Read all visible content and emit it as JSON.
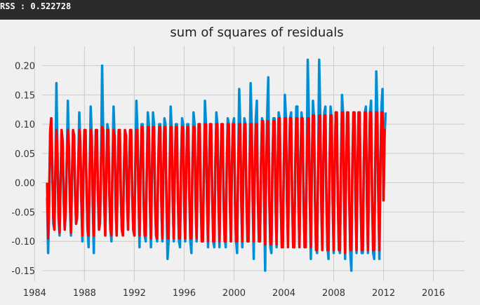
{
  "console": {
    "rss_label": "RSS",
    "rss_separator": " : ",
    "rss_value": "0.522728"
  },
  "colors": {
    "console_bg": "#2b2b2b",
    "plot_bg": "#f0f0f0",
    "grid": "#cbcbcb",
    "series_original": "#008fd5",
    "series_fitted": "#ff0000"
  },
  "chart_data": {
    "type": "line",
    "title": "sum of squares of residuals",
    "xlabel": "",
    "ylabel": "",
    "xlim": [
      1984.6,
      2018.5
    ],
    "ylim": [
      -0.168,
      0.233
    ],
    "xticks": [
      "1984",
      "1988",
      "1992",
      "1996",
      "2000",
      "2004",
      "2008",
      "2012",
      "2016"
    ],
    "yticks": [
      "0.20",
      "0.15",
      "0.10",
      "0.05",
      "0.00",
      "-0.05",
      "-0.10",
      "-0.15"
    ],
    "grid": true,
    "legend": "none",
    "x_start": 1985.0,
    "x_step_years": 0.08333,
    "series": [
      {
        "color": "#008fd5",
        "values": [
          -0.025,
          -0.12,
          -0.04,
          0.08,
          0.11,
          0.03,
          -0.07,
          -0.08,
          0.02,
          0.17,
          0.05,
          -0.06,
          -0.09,
          0.0,
          0.09,
          0.07,
          -0.03,
          -0.08,
          -0.05,
          0.04,
          0.14,
          0.06,
          -0.04,
          -0.09,
          0.01,
          0.09,
          0.08,
          -0.02,
          -0.07,
          -0.06,
          0.03,
          0.12,
          0.07,
          -0.03,
          -0.1,
          0.02,
          0.09,
          0.09,
          -0.01,
          -0.08,
          -0.11,
          0.02,
          0.13,
          0.08,
          -0.04,
          -0.12,
          0.01,
          0.09,
          0.09,
          -0.02,
          -0.08,
          -0.07,
          0.04,
          0.2,
          0.09,
          -0.03,
          -0.09,
          0.01,
          0.1,
          0.09,
          -0.02,
          -0.08,
          -0.1,
          0.03,
          0.13,
          0.08,
          -0.04,
          -0.09,
          0.01,
          0.09,
          0.09,
          -0.02,
          -0.08,
          -0.09,
          0.02,
          0.09,
          0.08,
          -0.03,
          -0.08,
          0.02,
          0.09,
          0.09,
          -0.02,
          -0.08,
          -0.09,
          0.03,
          0.14,
          0.09,
          -0.02,
          -0.11,
          0.02,
          0.1,
          0.1,
          -0.03,
          -0.09,
          -0.1,
          0.02,
          0.12,
          0.1,
          -0.03,
          -0.11,
          0.02,
          0.12,
          0.1,
          -0.04,
          -0.09,
          -0.1,
          0.03,
          0.1,
          0.1,
          -0.03,
          -0.1,
          0.02,
          0.11,
          0.1,
          -0.04,
          -0.13,
          -0.1,
          0.02,
          0.13,
          0.09,
          -0.03,
          -0.1,
          0.02,
          0.1,
          0.1,
          -0.03,
          -0.1,
          -0.11,
          0.03,
          0.11,
          0.1,
          -0.04,
          -0.1,
          0.02,
          0.1,
          0.1,
          -0.02,
          -0.1,
          -0.12,
          0.03,
          0.12,
          0.1,
          -0.03,
          -0.1,
          0.02,
          0.1,
          0.1,
          -0.03,
          -0.1,
          -0.1,
          0.02,
          0.14,
          0.1,
          -0.03,
          -0.11,
          0.02,
          0.1,
          0.1,
          -0.02,
          -0.1,
          -0.11,
          0.03,
          0.12,
          0.1,
          -0.03,
          -0.11,
          0.02,
          0.1,
          0.1,
          -0.03,
          -0.09,
          -0.11,
          0.03,
          0.11,
          0.1,
          -0.03,
          -0.1,
          0.03,
          0.1,
          0.11,
          -0.03,
          -0.1,
          -0.12,
          0.03,
          0.16,
          0.1,
          -0.03,
          -0.11,
          0.02,
          0.11,
          0.1,
          -0.03,
          -0.1,
          -0.1,
          0.03,
          0.17,
          0.1,
          -0.03,
          -0.13,
          0.02,
          0.11,
          0.14,
          -0.03,
          -0.1,
          -0.1,
          0.03,
          0.11,
          0.1,
          -0.03,
          -0.15,
          0.03,
          0.12,
          0.18,
          -0.03,
          -0.11,
          -0.12,
          0.03,
          0.11,
          0.11,
          -0.03,
          -0.11,
          0.02,
          0.12,
          0.11,
          -0.03,
          -0.1,
          -0.1,
          0.03,
          0.15,
          0.11,
          -0.03,
          -0.1,
          0.03,
          0.11,
          0.12,
          -0.03,
          -0.11,
          -0.11,
          0.03,
          0.13,
          0.13,
          -0.03,
          -0.11,
          0.03,
          0.12,
          0.1,
          -0.03,
          -0.11,
          -0.11,
          0.03,
          0.21,
          0.12,
          -0.03,
          -0.13,
          0.03,
          0.14,
          0.11,
          -0.03,
          -0.11,
          -0.12,
          0.03,
          0.21,
          0.12,
          -0.03,
          -0.11,
          0.03,
          0.12,
          0.13,
          -0.03,
          -0.11,
          -0.13,
          0.03,
          0.13,
          0.11,
          -0.03,
          -0.12,
          0.03,
          0.12,
          0.11,
          -0.03,
          -0.11,
          -0.12,
          0.03,
          0.15,
          0.12,
          -0.03,
          -0.13,
          0.03,
          0.12,
          0.11,
          -0.03,
          -0.12,
          -0.15,
          0.03,
          0.12,
          0.12,
          -0.03,
          -0.12,
          0.03,
          0.12,
          0.12,
          -0.03,
          -0.12,
          -0.12,
          0.03,
          0.12,
          0.13,
          -0.03,
          -0.12,
          0.03,
          0.12,
          0.14,
          -0.03,
          -0.12,
          -0.13,
          0.03,
          0.19,
          0.12,
          -0.03,
          -0.13,
          0.03,
          0.13,
          0.16,
          -0.03,
          0.08,
          0.12
        ]
      },
      {
        "color": "#ff0000",
        "values": [
          0.0,
          -0.095,
          -0.02,
          0.09,
          0.11,
          0.03,
          -0.06,
          -0.08,
          0.02,
          0.09,
          0.05,
          -0.05,
          -0.085,
          0.0,
          0.09,
          0.07,
          -0.02,
          -0.08,
          -0.04,
          0.04,
          0.09,
          0.06,
          -0.03,
          -0.085,
          0.01,
          0.09,
          0.08,
          -0.02,
          -0.07,
          -0.05,
          0.03,
          0.09,
          0.07,
          -0.03,
          -0.09,
          0.02,
          0.09,
          0.09,
          -0.01,
          -0.08,
          -0.09,
          0.02,
          0.09,
          0.08,
          -0.03,
          -0.09,
          0.01,
          0.09,
          0.09,
          -0.02,
          -0.08,
          -0.06,
          0.04,
          0.095,
          0.09,
          -0.03,
          -0.09,
          0.01,
          0.09,
          0.09,
          -0.02,
          -0.08,
          -0.09,
          0.03,
          0.09,
          0.08,
          -0.03,
          -0.09,
          0.01,
          0.09,
          0.09,
          -0.02,
          -0.08,
          -0.09,
          0.02,
          0.09,
          0.08,
          -0.03,
          -0.08,
          0.02,
          0.09,
          0.09,
          -0.02,
          -0.08,
          -0.09,
          0.03,
          0.09,
          0.09,
          -0.02,
          -0.09,
          0.02,
          0.095,
          0.095,
          -0.03,
          -0.09,
          -0.09,
          0.02,
          0.095,
          0.095,
          -0.03,
          -0.095,
          0.02,
          0.095,
          0.095,
          -0.03,
          -0.09,
          -0.095,
          0.03,
          0.095,
          0.095,
          -0.03,
          -0.095,
          0.02,
          0.095,
          0.095,
          -0.03,
          -0.095,
          -0.095,
          0.02,
          0.095,
          0.095,
          -0.03,
          -0.095,
          0.02,
          0.095,
          0.095,
          -0.03,
          -0.095,
          -0.095,
          0.03,
          0.095,
          0.095,
          -0.03,
          -0.095,
          0.02,
          0.095,
          0.095,
          -0.02,
          -0.095,
          -0.095,
          0.03,
          0.095,
          0.095,
          -0.03,
          -0.095,
          0.02,
          0.1,
          0.1,
          -0.03,
          -0.1,
          -0.1,
          0.02,
          0.1,
          0.1,
          -0.03,
          -0.1,
          0.02,
          0.1,
          0.1,
          -0.02,
          -0.1,
          -0.1,
          0.03,
          0.1,
          0.1,
          -0.03,
          -0.1,
          0.02,
          0.1,
          0.1,
          -0.03,
          -0.1,
          -0.1,
          0.03,
          0.1,
          0.1,
          -0.03,
          -0.1,
          0.03,
          0.1,
          0.1,
          -0.03,
          -0.1,
          -0.1,
          0.03,
          0.1,
          0.1,
          -0.03,
          -0.1,
          0.02,
          0.1,
          0.1,
          -0.03,
          -0.1,
          -0.1,
          0.03,
          0.1,
          0.1,
          -0.03,
          -0.1,
          0.02,
          0.1,
          0.1,
          -0.03,
          -0.1,
          -0.1,
          0.03,
          0.105,
          0.105,
          -0.03,
          -0.105,
          0.03,
          0.105,
          0.105,
          -0.03,
          -0.105,
          -0.105,
          0.03,
          0.105,
          0.105,
          -0.03,
          -0.105,
          0.02,
          0.11,
          0.11,
          -0.03,
          -0.11,
          -0.11,
          0.03,
          0.11,
          0.11,
          -0.03,
          -0.11,
          0.03,
          0.11,
          0.11,
          -0.03,
          -0.11,
          -0.11,
          0.03,
          0.11,
          0.11,
          -0.03,
          -0.11,
          0.03,
          0.11,
          0.11,
          -0.03,
          -0.11,
          -0.11,
          0.03,
          0.11,
          0.11,
          -0.03,
          -0.11,
          0.03,
          0.115,
          0.115,
          -0.03,
          -0.115,
          -0.115,
          0.03,
          0.115,
          0.115,
          -0.03,
          -0.115,
          0.03,
          0.115,
          0.115,
          -0.03,
          -0.115,
          -0.115,
          0.03,
          0.115,
          0.115,
          -0.03,
          -0.115,
          0.03,
          0.12,
          0.12,
          -0.03,
          -0.115,
          -0.115,
          0.03,
          0.12,
          0.12,
          -0.03,
          -0.12,
          0.03,
          0.12,
          0.12,
          -0.03,
          -0.115,
          -0.115,
          0.03,
          0.12,
          0.12,
          -0.03,
          -0.115,
          0.03,
          0.12,
          0.12,
          -0.03,
          -0.115,
          -0.115,
          0.03,
          0.12,
          0.12,
          -0.03,
          -0.115,
          0.03,
          0.12,
          0.12,
          -0.03,
          -0.115,
          -0.115,
          0.03,
          0.12,
          0.12,
          -0.03,
          -0.115,
          0.03,
          0.12,
          0.12,
          -0.03,
          0.09,
          0.09
        ]
      }
    ]
  }
}
